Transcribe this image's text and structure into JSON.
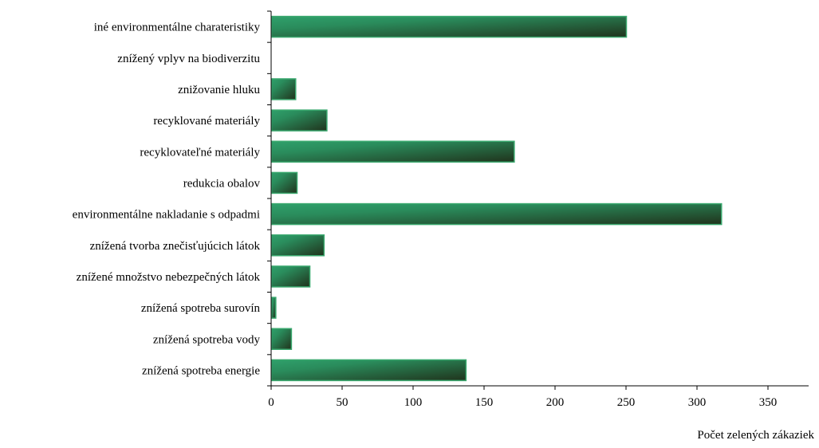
{
  "chart_data": {
    "type": "bar",
    "orientation": "horizontal",
    "categories": [
      "iné environmentálne charateristiky",
      "znížený vplyv na biodiverzitu",
      "znižovanie hluku",
      "recyklované materiály",
      "recyklovateľné materiály",
      "redukcia obalov",
      "environmentálne nakladanie s odpadmi",
      "znížená tvorba znečisťujúcich látok",
      "znížené množstvo nebezpečných látok",
      "znížená spotreba surovín",
      "znížená spotreba vody",
      "znížená spotreba energie"
    ],
    "values": [
      250,
      0,
      17,
      39,
      171,
      18,
      317,
      37,
      27,
      3,
      14,
      137
    ],
    "xlabel": "Počet zelených zákaziek",
    "ylabel": "",
    "xlim": [
      0,
      350
    ],
    "xticks": [
      0,
      50,
      100,
      150,
      200,
      250,
      300,
      350
    ],
    "grid": false,
    "legend": "none",
    "colors": {
      "bar_light": "#2fa06b",
      "bar_dark": "#20331c",
      "bar_outline": "#3aa86e",
      "axis": "#000000"
    }
  }
}
